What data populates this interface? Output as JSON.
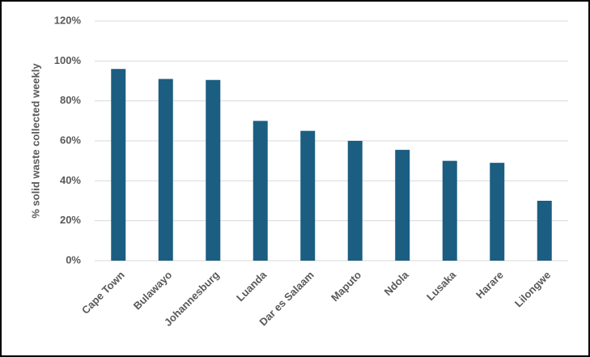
{
  "chart_data": {
    "type": "bar",
    "y_label": "% solid waste collected weekly",
    "categories": [
      "Cape Town",
      "Bulawayo",
      "Johannesburg",
      "Luanda",
      "Dar es Salaam",
      "Maputo",
      "Ndola",
      "Lusaka",
      "Harare",
      "Lilongwe"
    ],
    "values": [
      96,
      91,
      90.5,
      70,
      65,
      60,
      55.5,
      50,
      49,
      30
    ],
    "color": "#1b5e82",
    "ylim": [
      0,
      120
    ],
    "yticks": [
      {
        "value": 0,
        "label": "0%"
      },
      {
        "value": 20,
        "label": "20%"
      },
      {
        "value": 40,
        "label": "40%"
      },
      {
        "value": 60,
        "label": "60%"
      },
      {
        "value": 80,
        "label": "80%"
      },
      {
        "value": 100,
        "label": "100%"
      },
      {
        "value": 120,
        "label": "120%"
      }
    ],
    "grid": true
  }
}
